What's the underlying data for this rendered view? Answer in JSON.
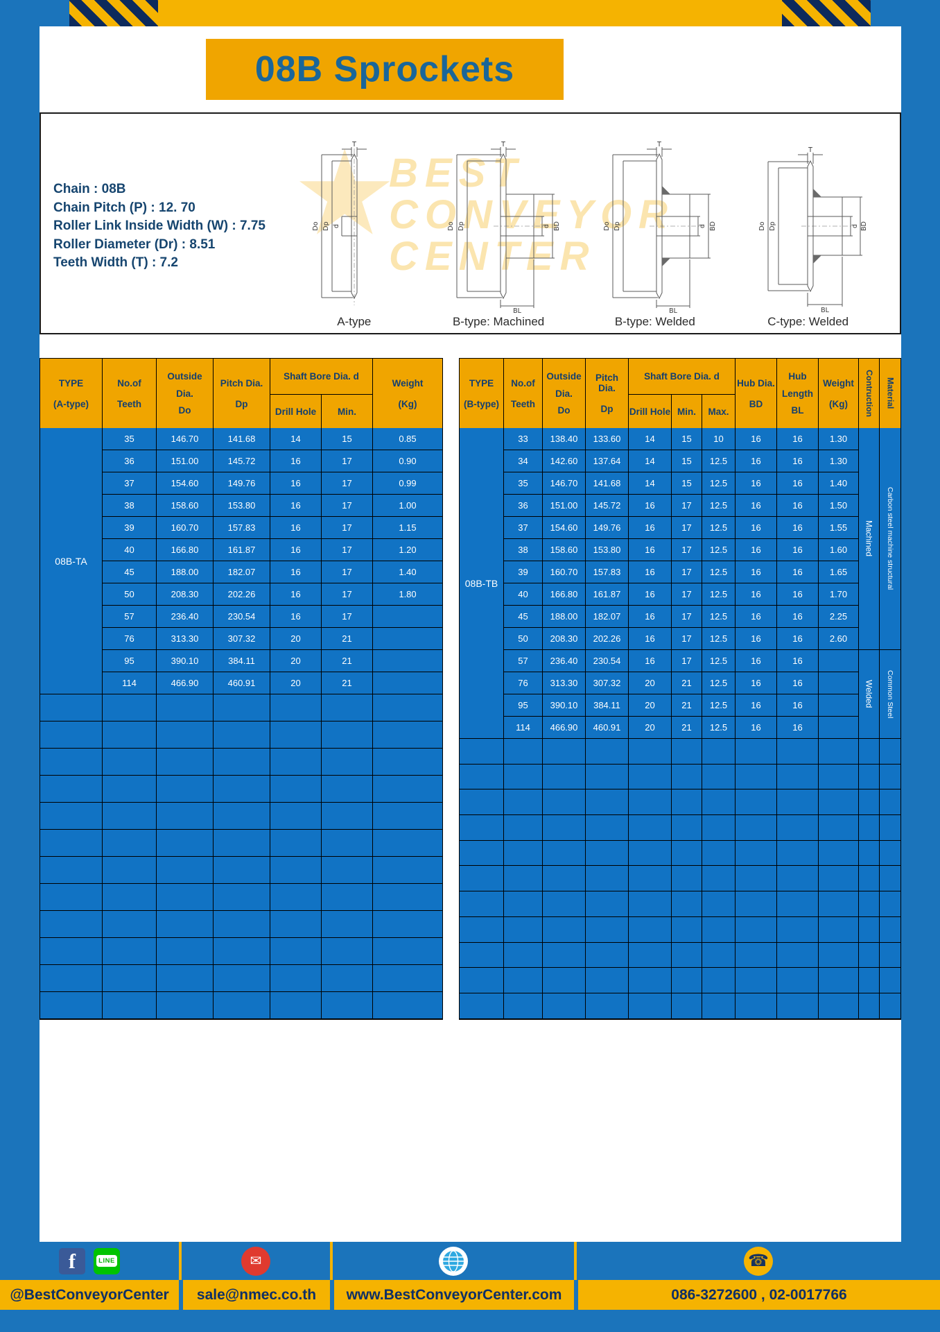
{
  "page": {
    "title": "08B Sprockets"
  },
  "specs": [
    "Chain : 08B",
    "Chain Pitch (P) : 12. 70",
    "Roller Link Inside Width (W) : 7.75",
    "Roller Diameter (Dr) : 8.51",
    "Teeth Width (T) : 7.2"
  ],
  "watermark": {
    "line1": "BEST",
    "line2": "CONVEYOR",
    "line3": "CENTER"
  },
  "diagrams": {
    "captions": [
      "A-type",
      "B-type: Machined",
      "B-type: Welded",
      "C-type: Welded"
    ],
    "dims": {
      "t": "T",
      "do": "Do",
      "dp": "Dp",
      "d": "d",
      "bd": "BD",
      "bl": "BL"
    }
  },
  "table_a": {
    "header": {
      "type1": "TYPE",
      "type2": "(A-type)",
      "teeth1": "No.of",
      "teeth2": "Teeth",
      "od1": "Outside",
      "od2": "Dia.",
      "od3": "Do",
      "pd1": "Pitch Dia.",
      "pd2": "Dp",
      "shaft": "Shaft Bore Dia. d",
      "drill": "Drill Hole",
      "min": "Min.",
      "wt1": "Weight",
      "wt2": "(Kg)"
    },
    "type_value": "08B-TA",
    "rows": [
      [
        "35",
        "146.70",
        "141.68",
        "14",
        "15",
        "0.85"
      ],
      [
        "36",
        "151.00",
        "145.72",
        "16",
        "17",
        "0.90"
      ],
      [
        "37",
        "154.60",
        "149.76",
        "16",
        "17",
        "0.99"
      ],
      [
        "38",
        "158.60",
        "153.80",
        "16",
        "17",
        "1.00"
      ],
      [
        "39",
        "160.70",
        "157.83",
        "16",
        "17",
        "1.15"
      ],
      [
        "40",
        "166.80",
        "161.87",
        "16",
        "17",
        "1.20"
      ],
      [
        "45",
        "188.00",
        "182.07",
        "16",
        "17",
        "1.40"
      ],
      [
        "50",
        "208.30",
        "202.26",
        "16",
        "17",
        "1.80"
      ],
      [
        "57",
        "236.40",
        "230.54",
        "16",
        "17",
        ""
      ],
      [
        "76",
        "313.30",
        "307.32",
        "20",
        "21",
        ""
      ],
      [
        "95",
        "390.10",
        "384.11",
        "20",
        "21",
        ""
      ],
      [
        "114",
        "466.90",
        "460.91",
        "20",
        "21",
        ""
      ]
    ]
  },
  "table_b": {
    "header": {
      "type1": "TYPE",
      "type2": "(B-type)",
      "teeth1": "No.of",
      "teeth2": "Teeth",
      "od1": "Outside",
      "od2": "Dia.",
      "od3": "Do",
      "pd1": "Pitch Dia.",
      "pd2": "Dp",
      "shaft": "Shaft Bore Dia. d",
      "drill": "Drill Hole",
      "min": "Min.",
      "max": "Max.",
      "hub1": "Hub Dia.",
      "hub2": "BD",
      "len1": "Hub",
      "len2": "Length",
      "len3": "BL",
      "wt1": "Weight",
      "wt2": "(Kg)",
      "construction": "Contruction",
      "material": "Material"
    },
    "type_value": "08B-TB",
    "rows": [
      [
        "33",
        "138.40",
        "133.60",
        "14",
        "15",
        "10",
        "16",
        "16",
        "1.30"
      ],
      [
        "34",
        "142.60",
        "137.64",
        "14",
        "15",
        "12.5",
        "16",
        "16",
        "1.30"
      ],
      [
        "35",
        "146.70",
        "141.68",
        "14",
        "15",
        "12.5",
        "16",
        "16",
        "1.40"
      ],
      [
        "36",
        "151.00",
        "145.72",
        "16",
        "17",
        "12.5",
        "16",
        "16",
        "1.50"
      ],
      [
        "37",
        "154.60",
        "149.76",
        "16",
        "17",
        "12.5",
        "16",
        "16",
        "1.55"
      ],
      [
        "38",
        "158.60",
        "153.80",
        "16",
        "17",
        "12.5",
        "16",
        "16",
        "1.60"
      ],
      [
        "39",
        "160.70",
        "157.83",
        "16",
        "17",
        "12.5",
        "16",
        "16",
        "1.65"
      ],
      [
        "40",
        "166.80",
        "161.87",
        "16",
        "17",
        "12.5",
        "16",
        "16",
        "1.70"
      ],
      [
        "45",
        "188.00",
        "182.07",
        "16",
        "17",
        "12.5",
        "16",
        "16",
        "2.25"
      ],
      [
        "50",
        "208.30",
        "202.26",
        "16",
        "17",
        "12.5",
        "16",
        "16",
        "2.60"
      ],
      [
        "57",
        "236.40",
        "230.54",
        "16",
        "17",
        "12.5",
        "16",
        "16",
        ""
      ],
      [
        "76",
        "313.30",
        "307.32",
        "20",
        "21",
        "12.5",
        "16",
        "16",
        ""
      ],
      [
        "95",
        "390.10",
        "384.11",
        "20",
        "21",
        "12.5",
        "16",
        "16",
        ""
      ],
      [
        "114",
        "466.90",
        "460.91",
        "20",
        "21",
        "12.5",
        "16",
        "16",
        ""
      ]
    ],
    "construction": {
      "machined": "Machined",
      "welded": "Welded"
    },
    "material": {
      "carbon": "Carbon steel  machine structural",
      "common": "Common  Steel"
    }
  },
  "footer": {
    "handle": "@BestConveyorCenter",
    "email": "sale@nmec.co.th",
    "website": "www.BestConveyorCenter.com",
    "phones": "086-3272600 , 02-0017766",
    "icons": {
      "facebook": "f",
      "line": "LINE"
    }
  }
}
